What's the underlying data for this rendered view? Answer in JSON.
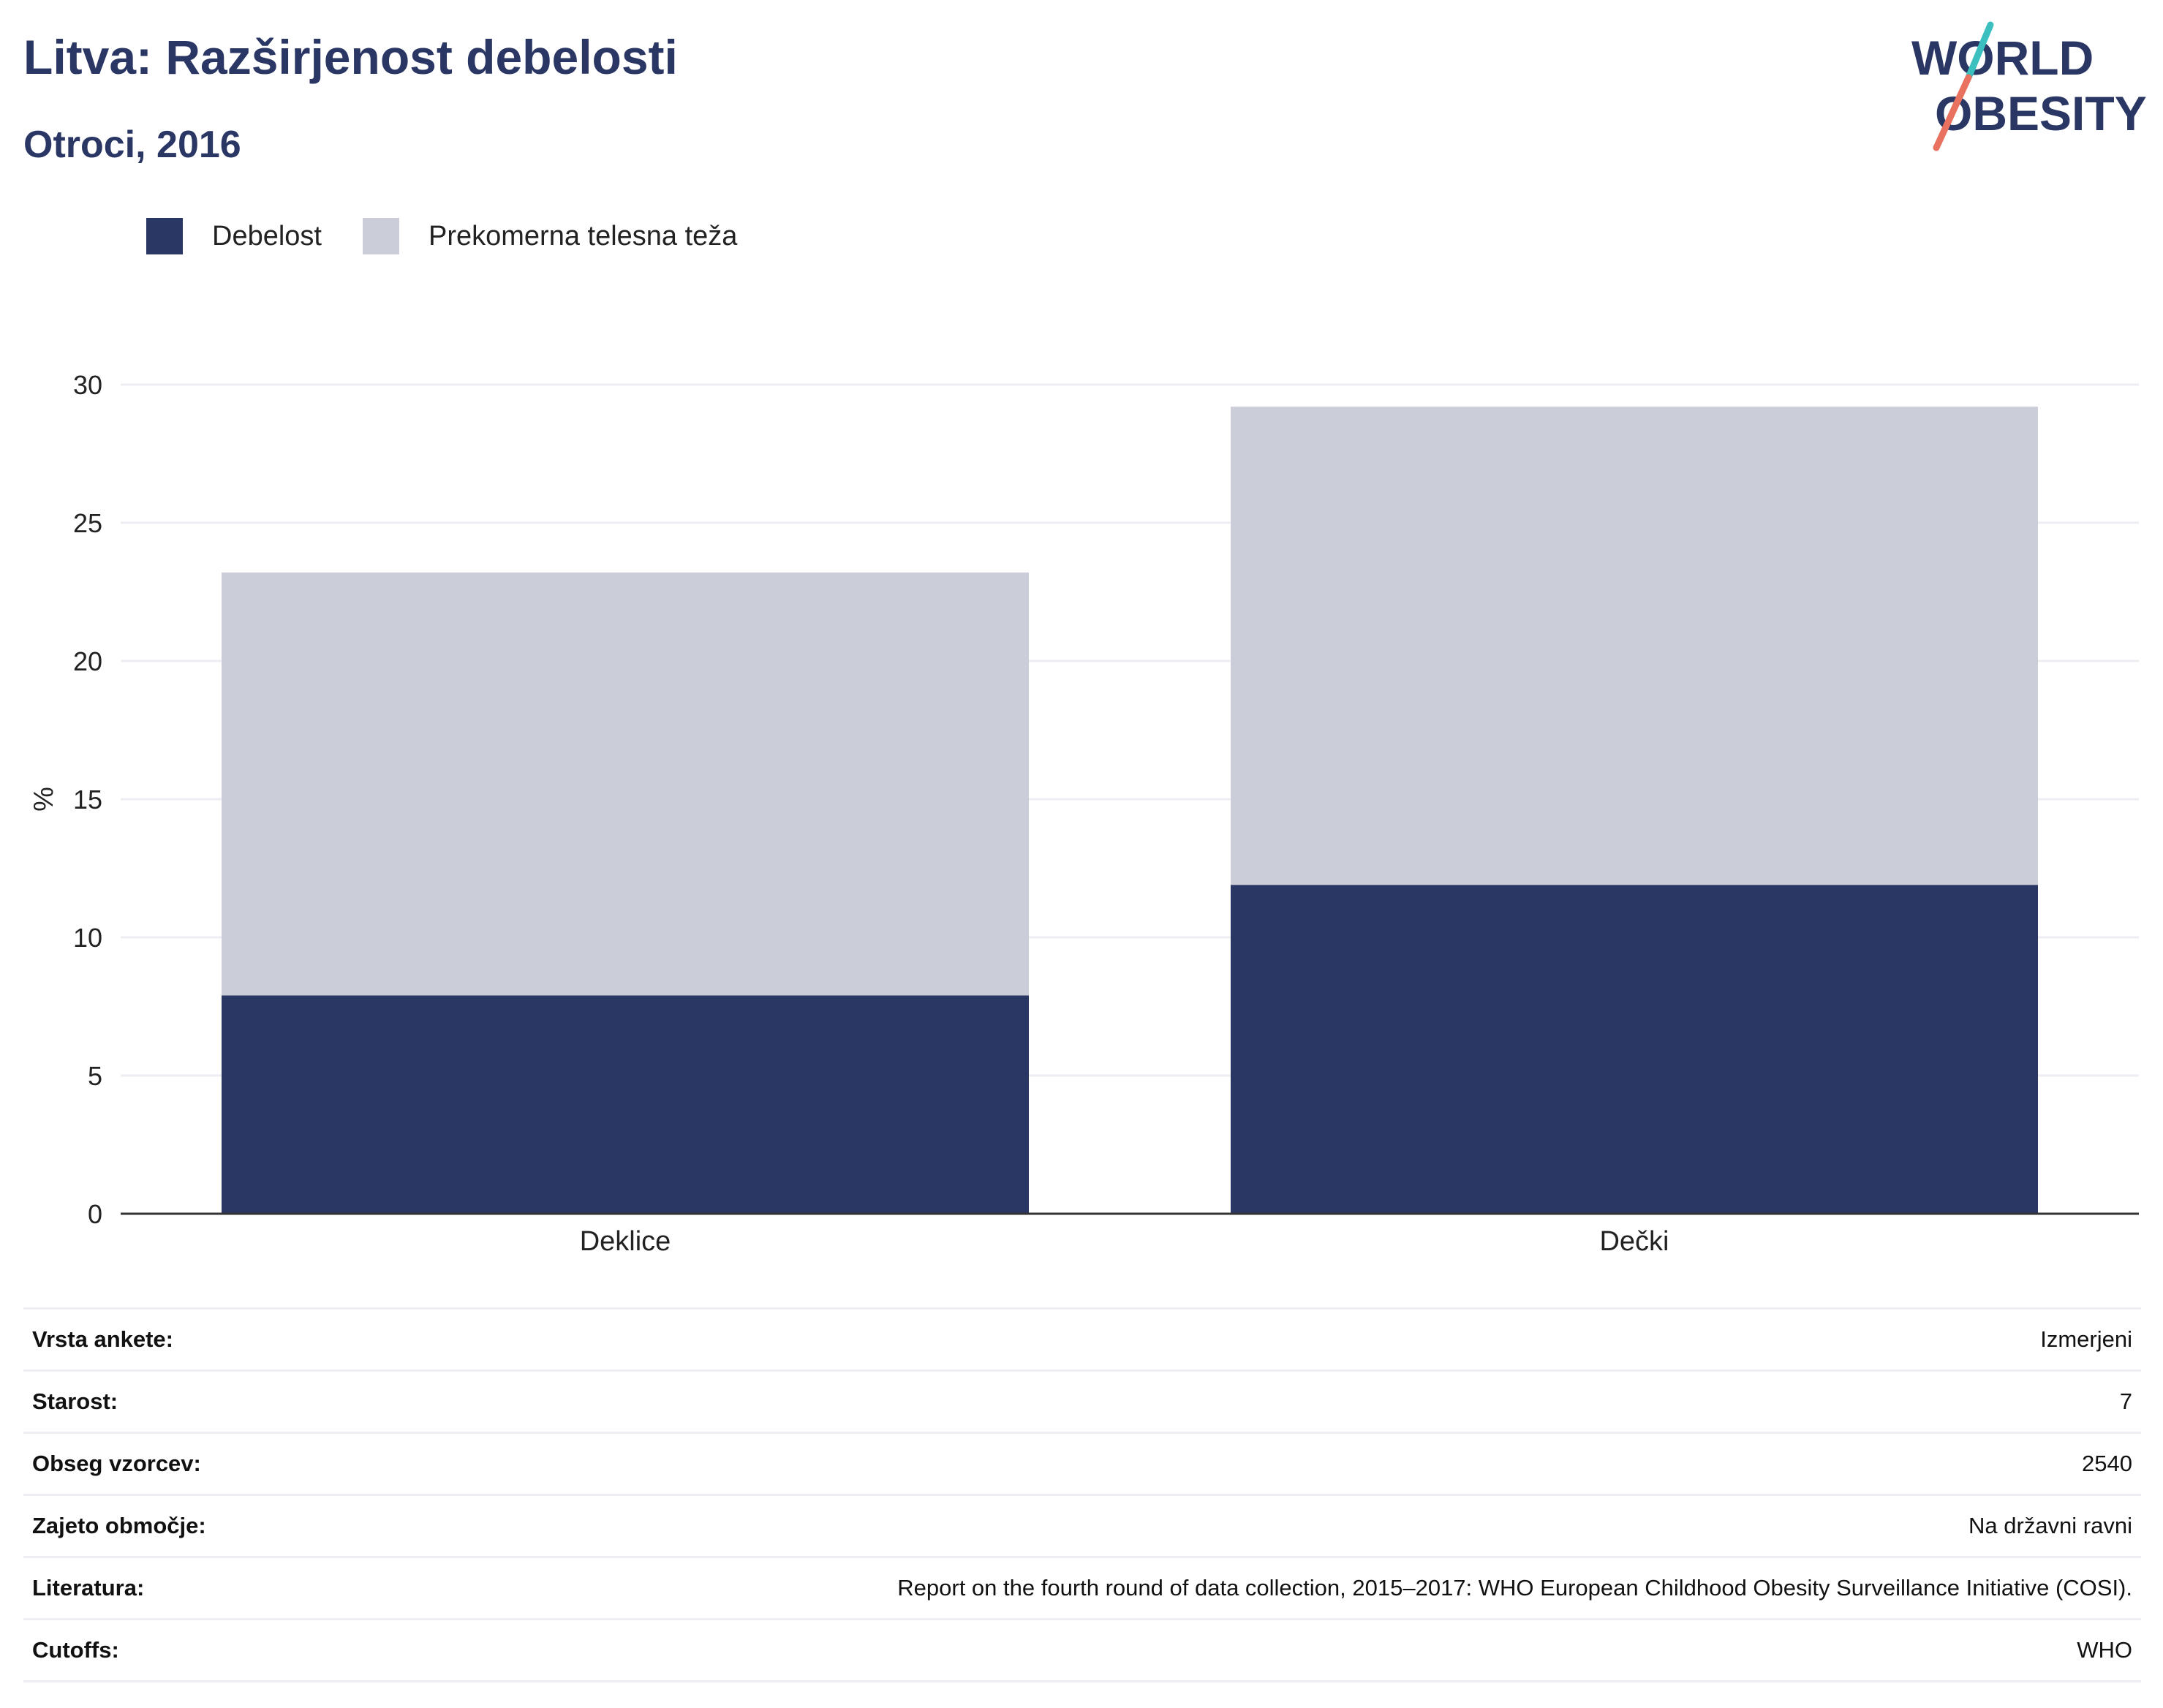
{
  "header": {
    "title": "Litva: Razširjenost debelosti",
    "subtitle": "Otroci, 2016"
  },
  "logo": {
    "line1": "WORLD",
    "line2": "OBESITY"
  },
  "colors": {
    "obesity": "#2a3663",
    "overweight": "#cbcdd9",
    "text": "#2a3663",
    "accent_teal": "#3bbfbf",
    "accent_red": "#e8715f"
  },
  "legend": [
    {
      "label": "Debelost",
      "color": "#2a3663"
    },
    {
      "label": "Prekomerna telesna teža",
      "color": "#cbcdd9"
    }
  ],
  "chart_data": {
    "type": "bar",
    "stacked": true,
    "categories": [
      "Deklice",
      "Dečki"
    ],
    "series": [
      {
        "name": "Debelost",
        "values": [
          7.9,
          11.9
        ]
      },
      {
        "name": "Prekomerna telesna teža",
        "values": [
          15.3,
          17.3
        ]
      }
    ],
    "ylabel": "%",
    "ylim": [
      0,
      30
    ],
    "yticks": [
      0,
      5,
      10,
      15,
      20,
      25,
      30
    ],
    "grid": true,
    "legend_position": "top-left"
  },
  "info": [
    {
      "key": "Vrsta ankete:",
      "value": "Izmerjeni"
    },
    {
      "key": "Starost:",
      "value": "7"
    },
    {
      "key": "Obseg vzorcev:",
      "value": "2540"
    },
    {
      "key": "Zajeto območje:",
      "value": "Na državni ravni"
    },
    {
      "key": "Literatura:",
      "value": "Report on the fourth round of data collection, 2015–2017: WHO European Childhood Obesity Surveillance Initiative (COSI)."
    },
    {
      "key": "Cutoffs:",
      "value": "WHO"
    }
  ]
}
